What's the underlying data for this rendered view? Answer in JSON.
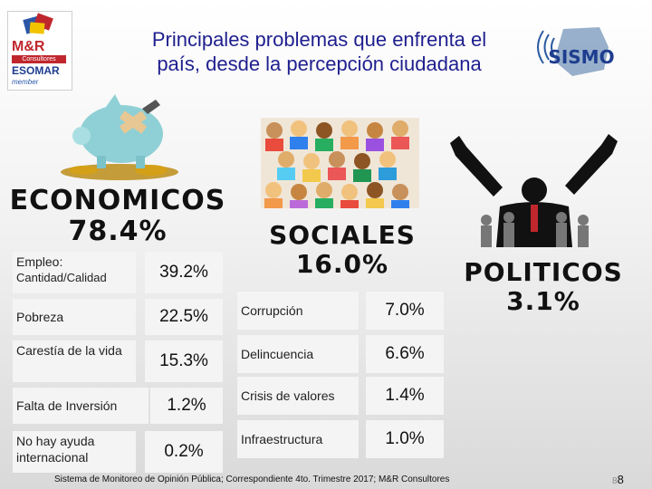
{
  "title_line1": "Principales problemas que enfrenta el",
  "title_line2": "país, desde la percepción ciudadana",
  "logo_mr": {
    "name": "M&R",
    "sub": "Consultores",
    "esomar": "ESOMAR",
    "member": "member"
  },
  "logo_sismo": {
    "name": "SISMO"
  },
  "economicos": {
    "title": "ECONOMICOS",
    "percent": "78.4%",
    "items": [
      {
        "label": "Empleo:",
        "sub": "Cantidad/Calidad",
        "value": "39.2%"
      },
      {
        "label": "Pobreza",
        "value": "22.5%"
      },
      {
        "label": "Carestía de la vida",
        "value": "15.3%"
      },
      {
        "label": "Falta de Inversión",
        "value": "1.2%"
      },
      {
        "label": "No hay ayuda internacional",
        "value": "0.2%"
      }
    ]
  },
  "sociales": {
    "title": "SOCIALES",
    "percent": "16.0%",
    "items": [
      {
        "label": "Corrupción",
        "value": "7.0%"
      },
      {
        "label": "Delincuencia",
        "value": "6.6%"
      },
      {
        "label": "Crisis de valores",
        "value": "1.4%"
      },
      {
        "label": "Infraestructura",
        "value": "1.0%"
      }
    ]
  },
  "politicos": {
    "title": "POLITICOS",
    "percent": "3.1%"
  },
  "footer": "Sistema de Monitoreo de Opinión Pública; Correspondiente 4to. Trimestre 2017; M&R Consultores",
  "page": {
    "small": "8",
    "big": "8"
  },
  "colors": {
    "title": "#1f1f8f",
    "box_bg": "#f4f4f4"
  }
}
